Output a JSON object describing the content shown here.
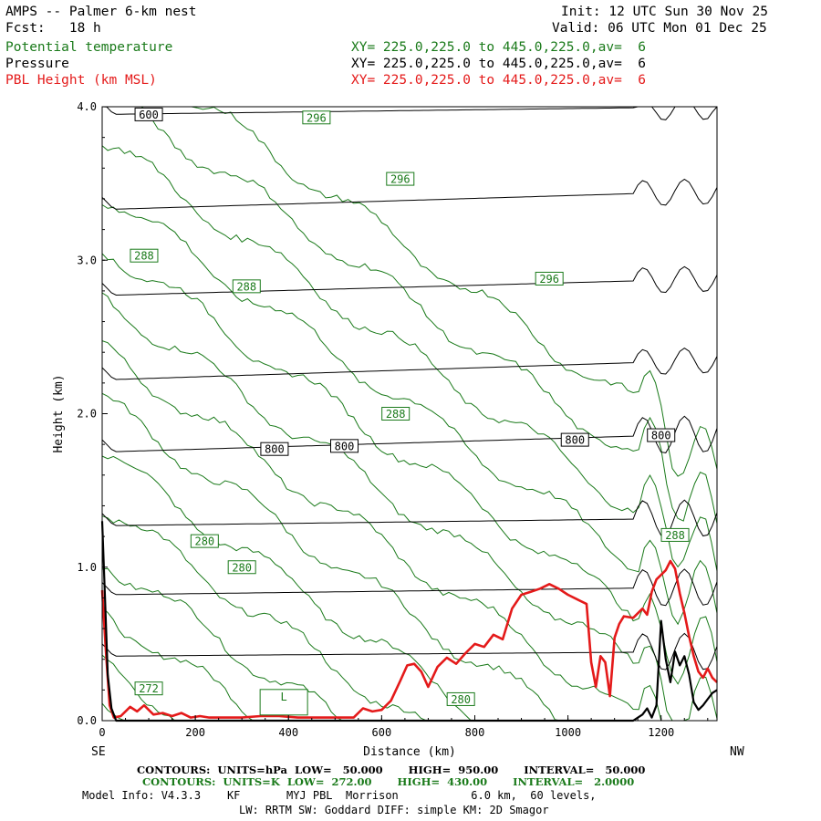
{
  "header": {
    "title": "AMPS -- Palmer 6-km nest",
    "init": "Init: 12 UTC Sun 30 Nov 25",
    "fcst": "Fcst:   18 h",
    "valid": "Valid: 06 UTC Mon 01 Dec 25",
    "fields": [
      {
        "name": "Potential temperature",
        "xy": "XY= 225.0,225.0 to 445.0,225.0,av=  6",
        "color": "#1a7a1a"
      },
      {
        "name": "Pressure",
        "xy": "XY= 225.0,225.0 to 445.0,225.0,av=  6",
        "color": "#000000"
      },
      {
        "name": "PBL Height (km MSL)",
        "xy": "XY= 225.0,225.0 to 445.0,225.0,av=  6",
        "color": "#e41a1a"
      }
    ]
  },
  "chart_data": {
    "type": "line",
    "title": "AMPS -- Palmer 6-km nest",
    "xlabel": "Distance (km)",
    "ylabel": "Height (km)",
    "xlim": [
      0,
      1320
    ],
    "ylim": [
      0,
      4.0
    ],
    "x_ticks": [
      "0",
      "200",
      "400",
      "600",
      "800",
      "1000",
      "1200"
    ],
    "y_ticks": [
      "0.0",
      "1.0",
      "2.0",
      "3.0",
      "4.0"
    ],
    "left_end_label": "SE",
    "right_end_label": "NW",
    "pressure_contours": {
      "units": "hPa",
      "low": 50,
      "high": 950,
      "interval": 50,
      "levels": [
        {
          "start": 0.42,
          "end": 0.45
        },
        {
          "start": 0.82,
          "end": 0.87
        },
        {
          "start": 1.27,
          "end": 1.32
        },
        {
          "start": 1.75,
          "end": 1.87
        },
        {
          "start": 2.22,
          "end": 2.35
        },
        {
          "start": 2.77,
          "end": 2.88
        },
        {
          "start": 3.33,
          "end": 3.45
        },
        {
          "start": 3.95,
          "end": 4.0
        }
      ],
      "labels": [
        {
          "text": "600",
          "x": 100,
          "y": 3.95
        },
        {
          "text": "800",
          "x": 370,
          "y": 1.77
        },
        {
          "text": "800",
          "x": 520,
          "y": 1.79
        },
        {
          "text": "800",
          "x": 1015,
          "y": 1.83
        },
        {
          "text": "800",
          "x": 1200,
          "y": 1.86
        }
      ]
    },
    "theta_contours": {
      "units": "K",
      "low": 272,
      "high": 430,
      "interval": 2,
      "labels": [
        {
          "text": "296",
          "x": 460,
          "y": 3.93
        },
        {
          "text": "296",
          "x": 640,
          "y": 3.53
        },
        {
          "text": "296",
          "x": 960,
          "y": 2.88
        },
        {
          "text": "288",
          "x": 90,
          "y": 3.03
        },
        {
          "text": "288",
          "x": 310,
          "y": 2.83
        },
        {
          "text": "288",
          "x": 630,
          "y": 2.0
        },
        {
          "text": "288",
          "x": 1230,
          "y": 1.21
        },
        {
          "text": "280",
          "x": 220,
          "y": 1.17
        },
        {
          "text": "280",
          "x": 300,
          "y": 1.0
        },
        {
          "text": "280",
          "x": 770,
          "y": 0.14
        },
        {
          "text": "272",
          "x": 100,
          "y": 0.21
        }
      ],
      "low_marker": "L"
    },
    "series": [
      {
        "name": "PBL Height (km MSL)",
        "color": "#e41a1a",
        "x": [
          0,
          8,
          16,
          25,
          40,
          60,
          75,
          90,
          110,
          130,
          150,
          170,
          190,
          210,
          230,
          260,
          300,
          340,
          380,
          420,
          450,
          500,
          540,
          560,
          580,
          600,
          620,
          640,
          655,
          670,
          685,
          700,
          720,
          740,
          760,
          780,
          800,
          820,
          840,
          860,
          880,
          900,
          920,
          940,
          960,
          980,
          1000,
          1020,
          1040,
          1050,
          1060,
          1070,
          1080,
          1090,
          1100,
          1110,
          1120,
          1140,
          1160,
          1170,
          1180,
          1190,
          1200,
          1210,
          1220,
          1230,
          1240,
          1250,
          1260,
          1270,
          1280,
          1290,
          1300,
          1310,
          1320
        ],
        "y": [
          0.85,
          0.45,
          0.1,
          0.02,
          0.03,
          0.09,
          0.06,
          0.1,
          0.04,
          0.05,
          0.03,
          0.05,
          0.02,
          0.03,
          0.02,
          0.02,
          0.02,
          0.03,
          0.03,
          0.02,
          0.02,
          0.02,
          0.02,
          0.08,
          0.06,
          0.07,
          0.13,
          0.26,
          0.36,
          0.37,
          0.32,
          0.22,
          0.35,
          0.41,
          0.37,
          0.44,
          0.5,
          0.48,
          0.56,
          0.53,
          0.73,
          0.82,
          0.84,
          0.86,
          0.89,
          0.86,
          0.82,
          0.79,
          0.76,
          0.38,
          0.22,
          0.42,
          0.38,
          0.16,
          0.54,
          0.63,
          0.68,
          0.67,
          0.73,
          0.69,
          0.84,
          0.92,
          0.95,
          0.98,
          1.04,
          0.99,
          0.83,
          0.7,
          0.55,
          0.42,
          0.32,
          0.28,
          0.34,
          0.28,
          0.25
        ]
      },
      {
        "name": "Terrain",
        "color": "#000000",
        "x": [
          0,
          6,
          12,
          20,
          30,
          60,
          100,
          200,
          400,
          600,
          800,
          1000,
          1100,
          1140,
          1160,
          1170,
          1180,
          1190,
          1200,
          1210,
          1220,
          1230,
          1240,
          1250,
          1260,
          1270,
          1280,
          1290,
          1300,
          1310,
          1320
        ],
        "y": [
          1.3,
          0.8,
          0.3,
          0.08,
          0.0,
          0.0,
          0.0,
          0.0,
          0.0,
          0.0,
          0.0,
          0.0,
          0.0,
          0.0,
          0.04,
          0.08,
          0.02,
          0.1,
          0.65,
          0.4,
          0.25,
          0.45,
          0.36,
          0.42,
          0.3,
          0.12,
          0.07,
          0.1,
          0.14,
          0.18,
          0.2
        ]
      }
    ]
  },
  "footer": {
    "pressure_contours": "CONTOURS:  UNITS=hPa  LOW=   50.000       HIGH=  950.00       INTERVAL=   50.000",
    "theta_contours": "CONTOURS:  UNITS=K  LOW=  272.00       HIGH=  430.00       INTERVAL=   2.0000",
    "model_info": "Model Info: V4.3.3    KF       MYJ PBL  Morrison           6.0 km,  60 levels,",
    "model_info2": "LW: RRTM SW: Goddard DIFF: simple KM: 2D Smagor"
  }
}
